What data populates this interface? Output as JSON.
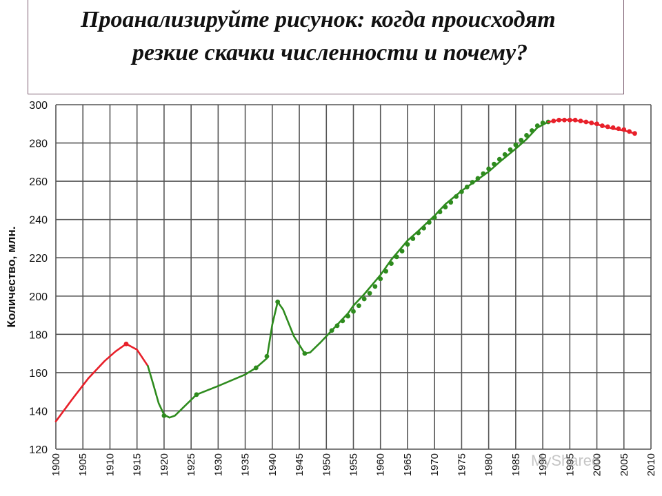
{
  "title": {
    "line1": "Проанализируйте рисунок: когда происходят",
    "line2": "резкие скачки численности и почему?"
  },
  "watermark": "MyShared",
  "chart_data": {
    "type": "line",
    "title": "",
    "xlabel": "",
    "ylabel": "Количество, млн.",
    "xlim": [
      1900,
      2010
    ],
    "ylim": [
      120,
      300
    ],
    "grid": true,
    "x_ticks": [
      "1900",
      "1905",
      "1910",
      "1915",
      "1920",
      "1925",
      "1930",
      "1935",
      "1940",
      "1945",
      "1950",
      "1955",
      "1960",
      "1965",
      "1970",
      "1975",
      "1980",
      "1985",
      "1990",
      "1995",
      "2000",
      "2005",
      "2010"
    ],
    "y_ticks": [
      "120",
      "140",
      "160",
      "180",
      "200",
      "220",
      "240",
      "260",
      "280",
      "300"
    ],
    "colors": {
      "red": "#e8202a",
      "green": "#2e8b1e",
      "grid": "#555555"
    },
    "series": [
      {
        "color": "red",
        "line": [
          [
            1900,
            134.5
          ],
          [
            1903,
            146
          ],
          [
            1906,
            157
          ],
          [
            1909,
            166
          ],
          [
            1911,
            171
          ],
          [
            1913,
            175
          ],
          [
            1915,
            172
          ],
          [
            1917,
            163.5
          ]
        ],
        "markers": [
          [
            1913,
            175
          ]
        ]
      },
      {
        "color": "green",
        "line": [
          [
            1917,
            163.5
          ],
          [
            1918,
            154
          ],
          [
            1919,
            144
          ],
          [
            1920,
            138
          ],
          [
            1921,
            136.5
          ],
          [
            1922,
            137.5
          ],
          [
            1924,
            143
          ],
          [
            1926,
            148.5
          ],
          [
            1930,
            153
          ],
          [
            1935,
            159
          ],
          [
            1937,
            162.5
          ],
          [
            1939,
            167.5
          ],
          [
            1940,
            185
          ],
          [
            1941,
            197
          ],
          [
            1942,
            193
          ],
          [
            1944,
            179
          ],
          [
            1946,
            170
          ],
          [
            1947,
            170.5
          ],
          [
            1949,
            176
          ],
          [
            1951,
            182
          ],
          [
            1952,
            185
          ],
          [
            1953,
            188
          ],
          [
            1954,
            191
          ],
          [
            1955,
            195
          ],
          [
            1957,
            201
          ],
          [
            1960,
            211
          ],
          [
            1962,
            219
          ],
          [
            1965,
            229
          ],
          [
            1967,
            234
          ],
          [
            1970,
            242
          ],
          [
            1972,
            248
          ],
          [
            1975,
            255
          ],
          [
            1977,
            259
          ],
          [
            1980,
            265
          ],
          [
            1982,
            270
          ],
          [
            1985,
            277
          ],
          [
            1987,
            282
          ],
          [
            1989,
            288
          ],
          [
            1991,
            291
          ]
        ],
        "markers": [
          [
            1920,
            137.5
          ],
          [
            1926,
            148.5
          ],
          [
            1937,
            162.5
          ],
          [
            1939,
            168.5
          ],
          [
            1941,
            197
          ],
          [
            1946,
            170
          ],
          [
            1951,
            182
          ],
          [
            1952,
            184.5
          ],
          [
            1953,
            187
          ],
          [
            1954,
            189.5
          ],
          [
            1955,
            192
          ],
          [
            1956,
            195
          ],
          [
            1957,
            198.5
          ],
          [
            1958,
            201.5
          ],
          [
            1959,
            205
          ],
          [
            1960,
            209
          ],
          [
            1961,
            213
          ],
          [
            1962,
            217
          ],
          [
            1963,
            220.5
          ],
          [
            1964,
            223.5
          ],
          [
            1965,
            227
          ],
          [
            1966,
            230
          ],
          [
            1967,
            233
          ],
          [
            1968,
            235.5
          ],
          [
            1969,
            238.5
          ],
          [
            1970,
            241
          ],
          [
            1971,
            244
          ],
          [
            1972,
            246.5
          ],
          [
            1973,
            249
          ],
          [
            1974,
            252
          ],
          [
            1975,
            254.5
          ],
          [
            1976,
            257
          ],
          [
            1977,
            259.5
          ],
          [
            1978,
            261.5
          ],
          [
            1979,
            264
          ],
          [
            1980,
            266.5
          ],
          [
            1981,
            269
          ],
          [
            1982,
            271.5
          ],
          [
            1983,
            274
          ],
          [
            1984,
            276.5
          ],
          [
            1985,
            279
          ],
          [
            1986,
            281.5
          ],
          [
            1987,
            284
          ],
          [
            1988,
            286.5
          ],
          [
            1989,
            289
          ],
          [
            1990,
            290.5
          ],
          [
            1991,
            291
          ]
        ]
      },
      {
        "color": "red",
        "line": [
          [
            1991,
            291
          ],
          [
            1993,
            292
          ],
          [
            1995,
            292
          ],
          [
            1997,
            291.5
          ],
          [
            1999,
            290.5
          ],
          [
            2001,
            289
          ],
          [
            2003,
            287.5
          ],
          [
            2005,
            286.5
          ],
          [
            2007,
            285
          ]
        ],
        "markers": [
          [
            1992,
            291.5
          ],
          [
            1993,
            292
          ],
          [
            1994,
            292
          ],
          [
            1995,
            292
          ],
          [
            1996,
            292
          ],
          [
            1997,
            291.5
          ],
          [
            1998,
            291
          ],
          [
            1999,
            290.5
          ],
          [
            2000,
            290
          ],
          [
            2001,
            289
          ],
          [
            2002,
            288.5
          ],
          [
            2003,
            288
          ],
          [
            2004,
            287.5
          ],
          [
            2005,
            287
          ],
          [
            2006,
            286
          ],
          [
            2007,
            285
          ]
        ]
      }
    ]
  }
}
